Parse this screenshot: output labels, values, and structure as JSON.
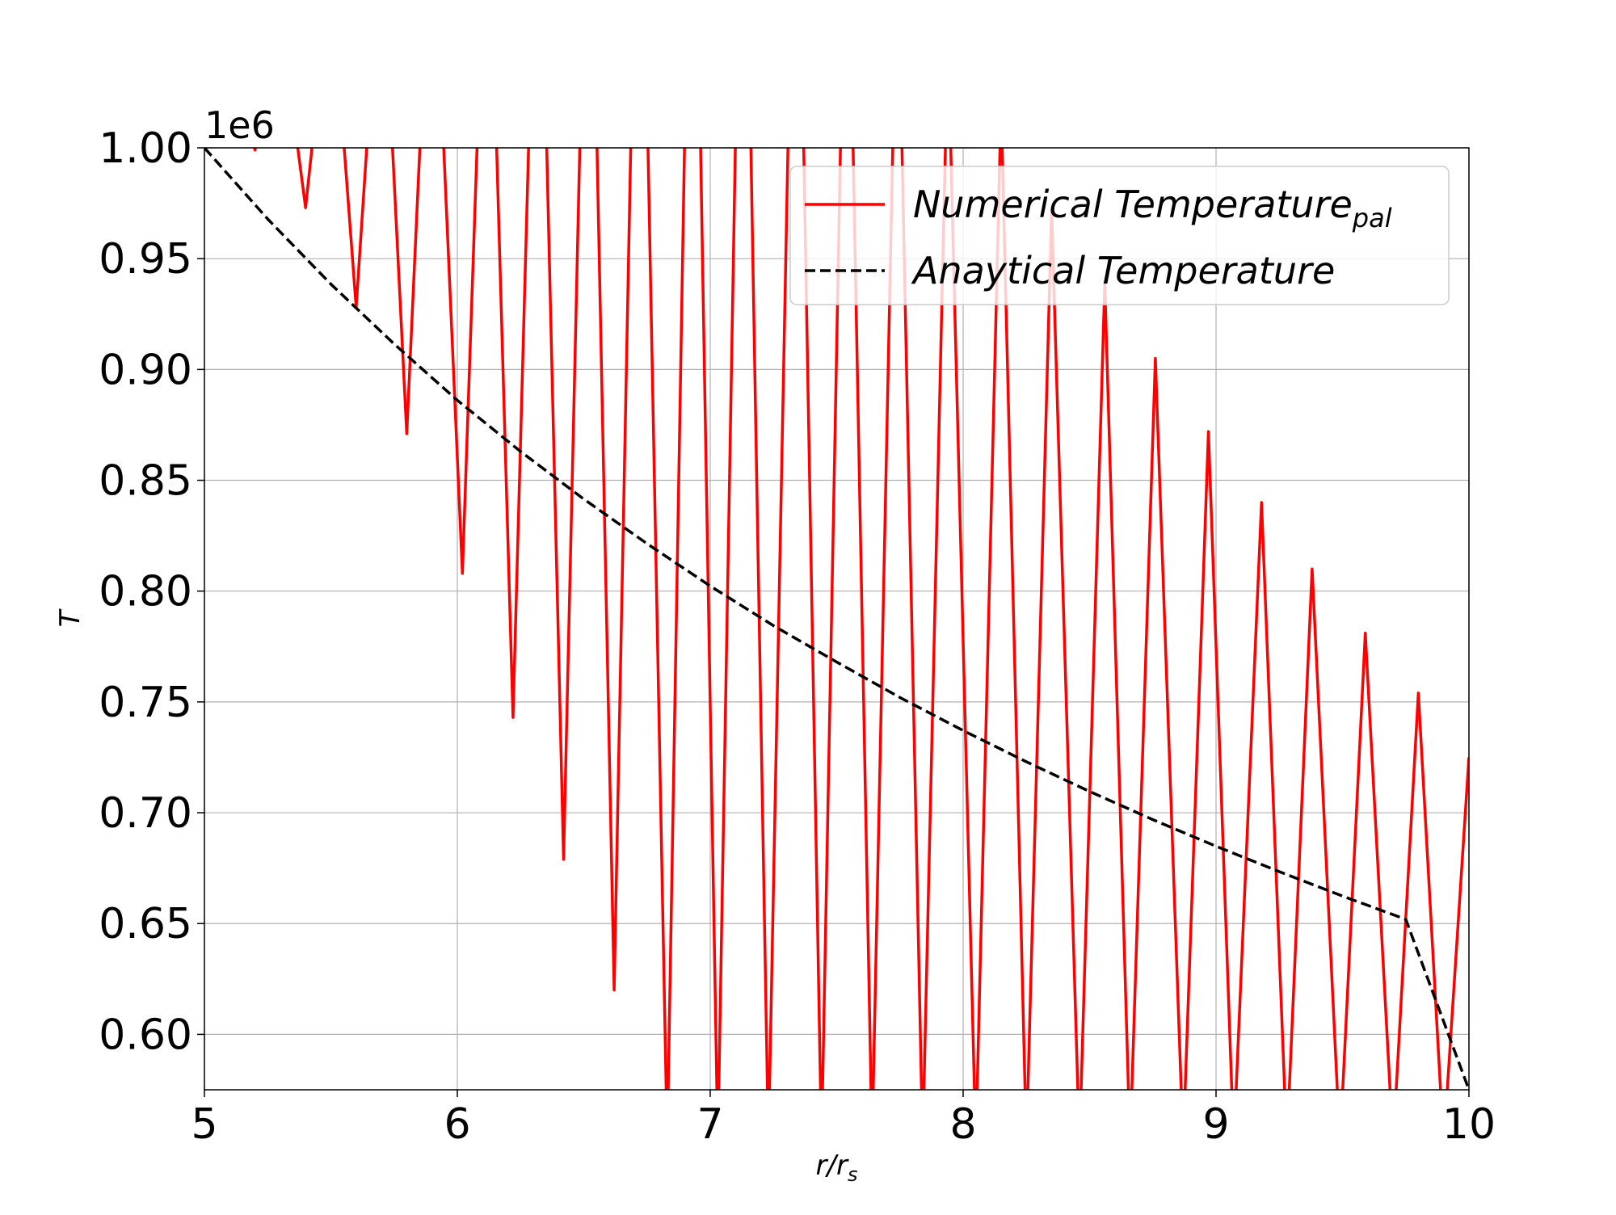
{
  "chart_data": {
    "type": "line",
    "xlabel": "r/r_s",
    "ylabel": "T",
    "offset_text": "1e6",
    "xlim": [
      5,
      10
    ],
    "ylim": [
      0.575,
      1.0
    ],
    "y_multiplier": 1000000,
    "grid": true,
    "legend_position": "top-right",
    "x_ticks": [
      "5",
      "6",
      "7",
      "8",
      "9",
      "10"
    ],
    "y_ticks": [
      "0.60",
      "0.65",
      "0.70",
      "0.75",
      "0.80",
      "0.85",
      "0.90",
      "0.95",
      "1.00"
    ],
    "series": [
      {
        "name": "Numerical Temperature",
        "name_subscript": "pal",
        "color": "#ff0000",
        "style": "solid",
        "x": [
          5.0,
          5.1,
          5.2,
          5.3,
          5.4,
          5.5,
          5.6,
          5.7,
          5.8,
          5.9,
          6.02,
          6.12,
          6.22,
          6.32,
          6.42,
          6.52,
          6.62,
          6.72,
          6.83,
          6.93,
          7.03,
          7.13,
          7.23,
          7.34,
          7.44,
          7.54,
          7.64,
          7.74,
          7.84,
          7.94,
          8.05,
          8.15,
          8.25,
          8.35,
          8.46,
          8.56,
          8.66,
          8.76,
          8.87,
          8.97,
          9.07,
          9.18,
          9.28,
          9.38,
          9.49,
          9.59,
          9.7,
          9.8,
          9.9,
          10.0
        ],
        "values": [
          0.999,
          1.05,
          0.999,
          1.06,
          0.973,
          1.08,
          0.928,
          1.1,
          0.871,
          1.12,
          0.808,
          1.14,
          0.743,
          1.16,
          0.679,
          1.18,
          0.62,
          1.2,
          0.55,
          1.21,
          0.55,
          1.2,
          0.55,
          1.19,
          0.55,
          1.15,
          0.55,
          1.1,
          0.55,
          1.05,
          0.55,
          1.02,
          0.55,
          0.972,
          0.55,
          0.939,
          0.55,
          0.905,
          0.55,
          0.872,
          0.55,
          0.84,
          0.55,
          0.81,
          0.55,
          0.781,
          0.55,
          0.754,
          0.55,
          0.725
        ]
      },
      {
        "name": "Anaytical Temperature",
        "color": "#000000",
        "style": "dashed",
        "formula_note": "",
        "x": [
          5.0,
          5.25,
          5.5,
          5.75,
          6.0,
          6.25,
          6.5,
          6.75,
          7.0,
          7.25,
          7.5,
          7.75,
          8.0,
          8.25,
          8.5,
          8.75,
          9.0,
          9.25,
          9.5,
          9.75,
          10.0
        ],
        "values": [
          1.0,
          0.9679,
          0.9385,
          0.9115,
          0.8861,
          0.863,
          0.8415,
          0.8214,
          0.8023,
          0.7844,
          0.768,
          0.752,
          0.7371,
          0.723,
          0.7096,
          0.6969,
          0.6849,
          0.6734,
          0.6624,
          0.6519,
          0.575
        ]
      }
    ]
  }
}
